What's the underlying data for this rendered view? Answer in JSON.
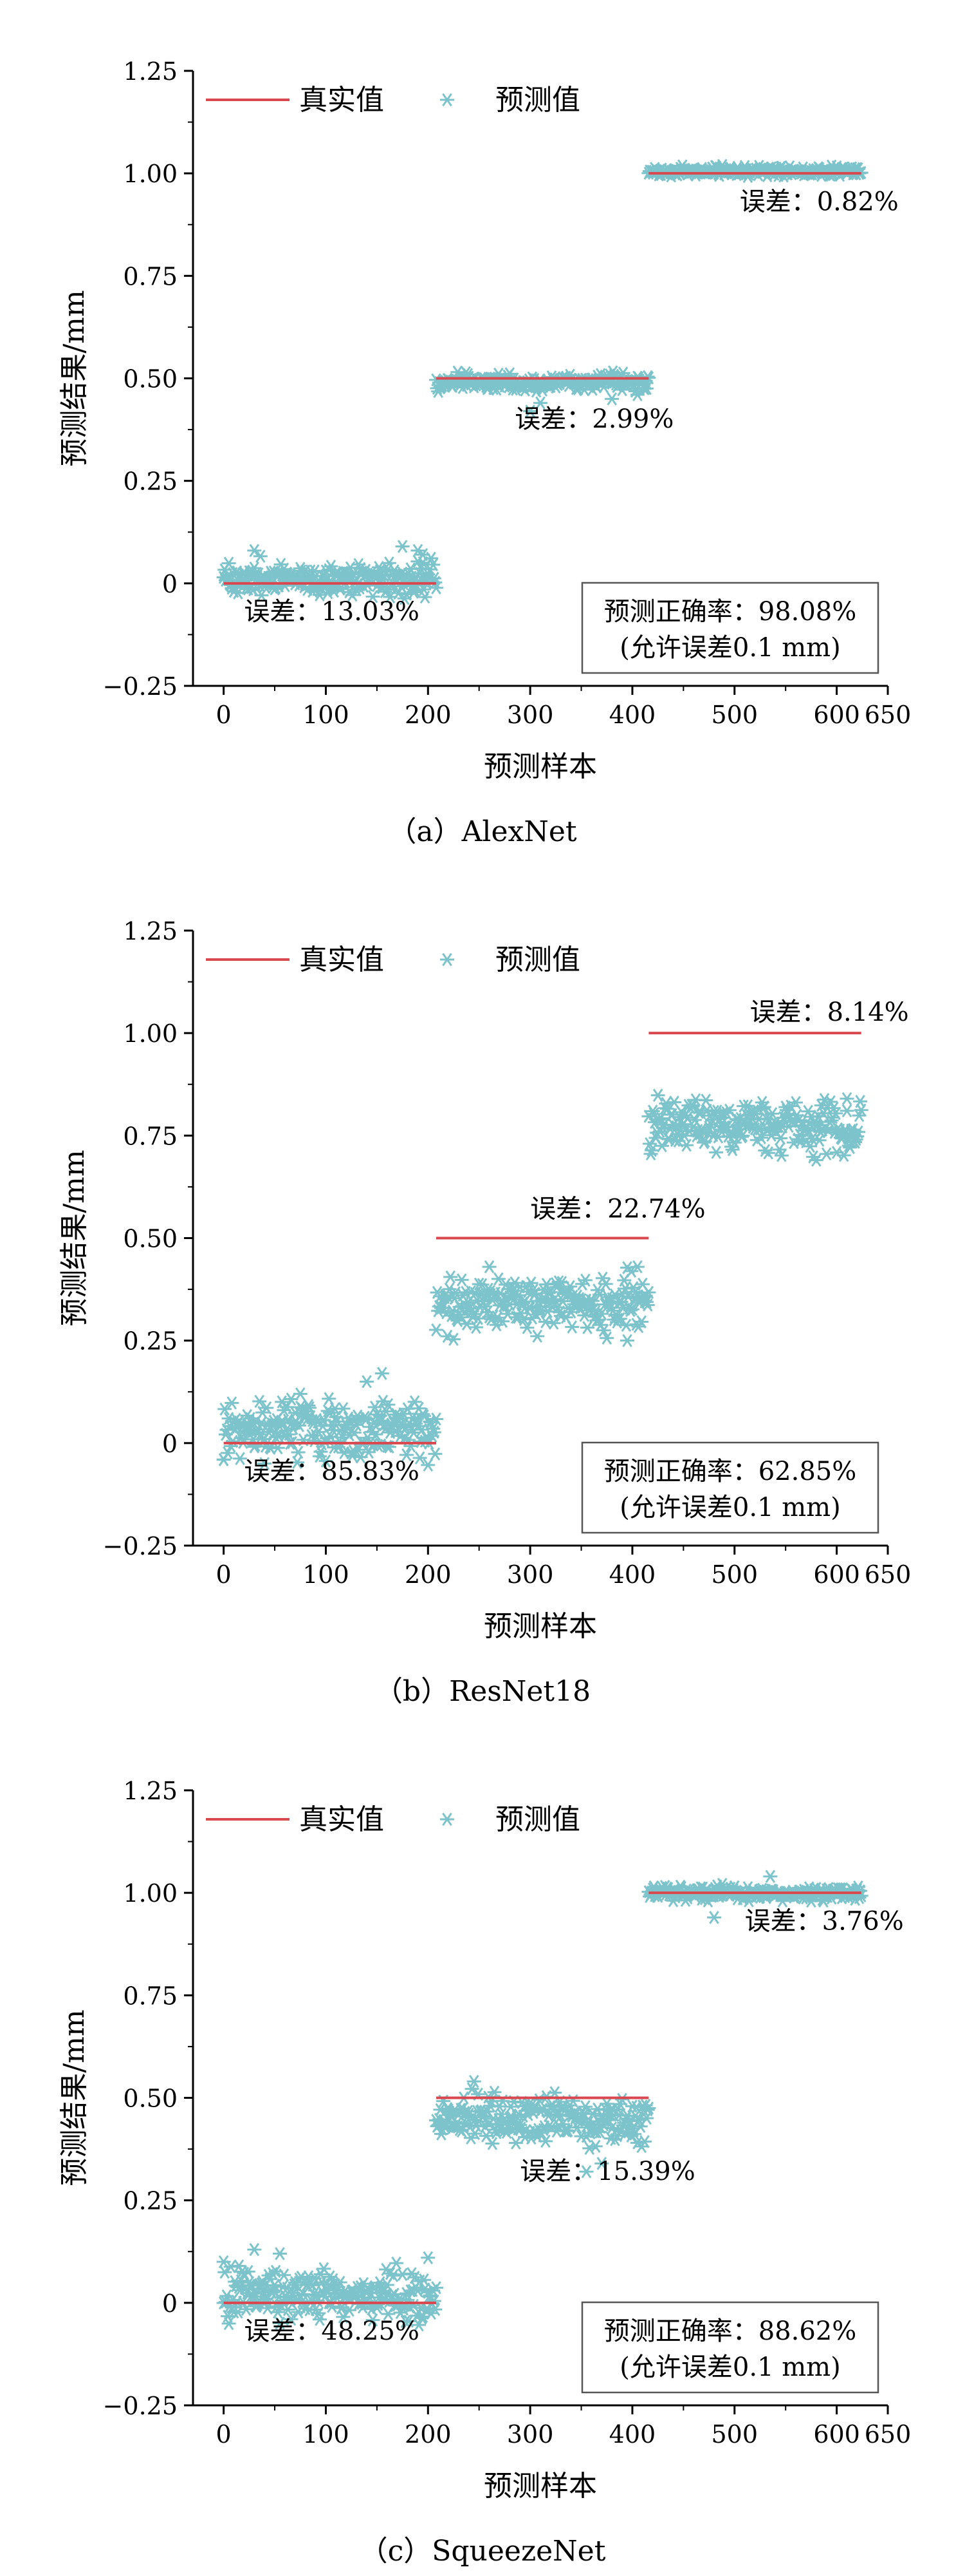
{
  "chart_data": [
    {
      "type": "scatter",
      "caption": "（a）AlexNet",
      "xlabel": "预测样本",
      "ylabel": "预测结果/mm",
      "xlim": [
        -30,
        650
      ],
      "ylim": [
        -0.25,
        1.25
      ],
      "x_ticks": [
        0,
        100,
        200,
        300,
        400,
        500,
        600,
        650
      ],
      "y_ticks": [
        -0.25,
        0,
        0.25,
        0.5,
        0.75,
        1.0,
        1.25
      ],
      "x_tick_labels": [
        "0",
        "100",
        "200",
        "300",
        "400",
        "500",
        "600",
        "650"
      ],
      "y_tick_labels": [
        "−0.25",
        "0",
        "0.25",
        "0.50",
        "0.75",
        "1.00",
        "1.25"
      ],
      "legend": {
        "true_label": "真实值",
        "pred_label": "预测值",
        "position": "top-left"
      },
      "accuracy_box": {
        "line1": "预测正确率：98.08%",
        "line2": "(允许误差0.1 mm)"
      },
      "groups": [
        {
          "x_range": [
            0,
            208
          ],
          "true_value": 0,
          "pred_mean": 0.012,
          "pred_spread": 0.03,
          "error_label": "误差：13.03%",
          "error_pos": {
            "x": 20,
            "y": -0.09
          },
          "outliers": [
            [
              30,
              0.08
            ],
            [
              175,
              0.09
            ],
            [
              190,
              0.08
            ],
            [
              195,
              0.07
            ]
          ]
        },
        {
          "x_range": [
            208,
            416
          ],
          "true_value": 0.5,
          "pred_mean": 0.49,
          "pred_spread": 0.015,
          "error_label": "误差：2.99%",
          "error_pos": {
            "x": 285,
            "y": 0.38
          },
          "outliers": [
            [
              300,
              0.42
            ],
            [
              310,
              0.44
            ],
            [
              380,
              0.45
            ],
            [
              405,
              0.46
            ]
          ]
        },
        {
          "x_range": [
            416,
            624
          ],
          "true_value": 1.0,
          "pred_mean": 1.005,
          "pred_spread": 0.008,
          "error_label": "误差：0.82%",
          "error_pos": {
            "x": 505,
            "y": 0.91
          },
          "outliers": []
        }
      ]
    },
    {
      "type": "scatter",
      "caption": "（b）ResNet18",
      "xlabel": "预测样本",
      "ylabel": "预测结果/mm",
      "xlim": [
        -30,
        650
      ],
      "ylim": [
        -0.25,
        1.25
      ],
      "x_ticks": [
        0,
        100,
        200,
        300,
        400,
        500,
        600,
        650
      ],
      "y_ticks": [
        -0.25,
        0,
        0.25,
        0.5,
        0.75,
        1.0,
        1.25
      ],
      "x_tick_labels": [
        "0",
        "100",
        "200",
        "300",
        "400",
        "500",
        "600",
        "650"
      ],
      "y_tick_labels": [
        "−0.25",
        "0",
        "0.25",
        "0.50",
        "0.75",
        "1.00",
        "1.25"
      ],
      "legend": {
        "true_label": "真实值",
        "pred_label": "预测值",
        "position": "top-left"
      },
      "accuracy_box": {
        "line1": "预测正确率：62.85%",
        "line2": "(允许误差0.1 mm)"
      },
      "groups": [
        {
          "x_range": [
            0,
            208
          ],
          "true_value": 0,
          "pred_mean": 0.035,
          "pred_spread": 0.05,
          "error_label": "误差：85.83%",
          "error_pos": {
            "x": 20,
            "y": -0.09
          },
          "outliers": [
            [
              155,
              0.17
            ],
            [
              140,
              0.15
            ],
            [
              75,
              0.12
            ],
            [
              0,
              -0.04
            ],
            [
              40,
              -0.05
            ]
          ]
        },
        {
          "x_range": [
            208,
            416
          ],
          "true_value": 0.5,
          "pred_mean": 0.335,
          "pred_spread": 0.05,
          "error_label": "误差：22.74%",
          "error_pos": {
            "x": 300,
            "y": 0.55
          },
          "outliers": [
            [
              260,
              0.43
            ],
            [
              405,
              0.43
            ],
            [
              395,
              0.25
            ]
          ]
        },
        {
          "x_range": [
            416,
            624
          ],
          "true_value": 1.0,
          "pred_mean": 0.775,
          "pred_spread": 0.045,
          "error_label": "误差：8.14%",
          "error_pos": {
            "x": 515,
            "y": 1.03
          },
          "outliers": [
            [
              580,
              0.69
            ],
            [
              610,
              0.84
            ]
          ]
        }
      ]
    },
    {
      "type": "scatter",
      "caption": "（c）SqueezeNet",
      "xlabel": "预测样本",
      "ylabel": "预测结果/mm",
      "xlim": [
        -30,
        650
      ],
      "ylim": [
        -0.25,
        1.25
      ],
      "x_ticks": [
        0,
        100,
        200,
        300,
        400,
        500,
        600,
        650
      ],
      "y_ticks": [
        -0.25,
        0,
        0.25,
        0.5,
        0.75,
        1.0,
        1.25
      ],
      "x_tick_labels": [
        "0",
        "100",
        "200",
        "300",
        "400",
        "500",
        "600",
        "650"
      ],
      "y_tick_labels": [
        "−0.25",
        "0",
        "0.25",
        "0.50",
        "0.75",
        "1.00",
        "1.25"
      ],
      "legend": {
        "true_label": "真实值",
        "pred_label": "预测值",
        "position": "top-left"
      },
      "accuracy_box": {
        "line1": "预测正确率：88.62%",
        "line2": "(允许误差0.1 mm)"
      },
      "groups": [
        {
          "x_range": [
            0,
            208
          ],
          "true_value": 0,
          "pred_mean": 0.02,
          "pred_spread": 0.045,
          "error_label": "误差：48.25%",
          "error_pos": {
            "x": 20,
            "y": -0.09
          },
          "outliers": [
            [
              0,
              0.1
            ],
            [
              15,
              0.09
            ],
            [
              30,
              0.13
            ],
            [
              55,
              0.12
            ],
            [
              200,
              0.11
            ]
          ]
        },
        {
          "x_range": [
            208,
            416
          ],
          "true_value": 0.5,
          "pred_mean": 0.45,
          "pred_spread": 0.045,
          "error_label": "误差：15.39%",
          "error_pos": {
            "x": 290,
            "y": 0.3
          },
          "outliers": [
            [
              245,
              0.54
            ],
            [
              370,
              0.34
            ],
            [
              355,
              0.32
            ]
          ]
        },
        {
          "x_range": [
            416,
            624
          ],
          "true_value": 1.0,
          "pred_mean": 1.0,
          "pred_spread": 0.012,
          "error_label": "误差：3.76%",
          "error_pos": {
            "x": 510,
            "y": 0.91
          },
          "outliers": [
            [
              535,
              1.04
            ],
            [
              480,
              0.94
            ]
          ]
        }
      ]
    }
  ],
  "colors": {
    "true_line": "#d9474f",
    "pred_marker": "#7cc3cb",
    "axis": "#000000"
  }
}
